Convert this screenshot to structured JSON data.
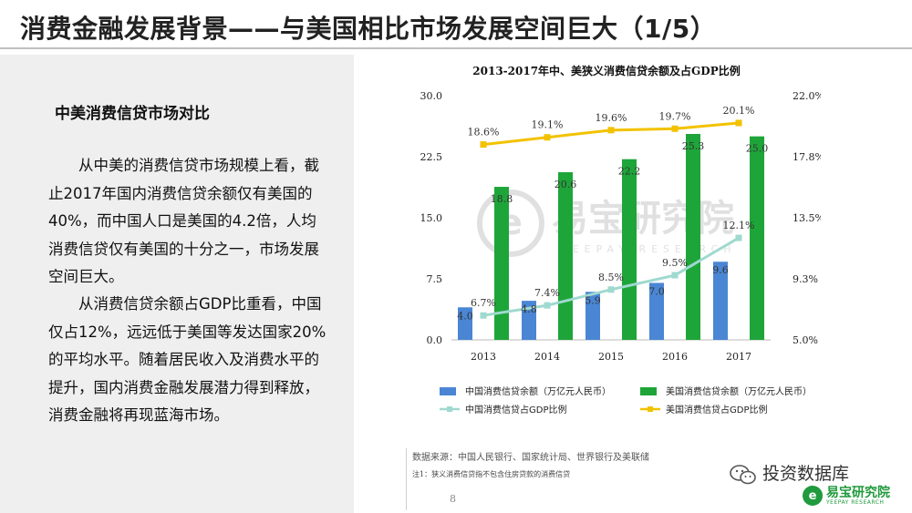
{
  "slide": {
    "title": "消费金融发展背景——与美国相比市场发展空间巨大（1/5）",
    "subheading": "中美消费信贷市场对比",
    "paragraph1": "从中美的消费信贷市场规模上看，截止2017年国内消费信贷余额仅有美国的40%，而中国人口是美国的4.2倍，人均消费信贷仅有美国的十分之一，市场发展空间巨大。",
    "paragraph2": "从消费信贷余额占GDP比重看，中国仅占12%，远远低于美国等发达国家20%的平均水平。随着居民收入及消费水平的提升，国内消费金融发展潜力得到释放，消费金融将再现蓝海市场。",
    "source": "数据来源：中国人民银行、国家统计局、世界银行及美联储",
    "note": "注1：狭义消费信贷指不包含住房贷款的消费信贷",
    "page_number": "8",
    "brand_wechat": "投资数据库",
    "brand_logo_cn": "易宝研究院",
    "brand_logo_en": "YEEPAY RESEARCH",
    "watermark_cn": "易宝研究院",
    "watermark_en": "YEEPAY RESEARCH"
  },
  "chart_data": {
    "type": "bar",
    "title": "2013-2017年中、美狭义消费信贷余额及占GDP比例",
    "categories": [
      "2013",
      "2014",
      "2015",
      "2016",
      "2017"
    ],
    "left_axis": {
      "min": 0,
      "max": 30,
      "ticks": [
        "0.0",
        "7.5",
        "15.0",
        "22.5",
        "30.0"
      ]
    },
    "right_axis": {
      "min": 5,
      "max": 22,
      "ticks": [
        "5.0%",
        "9.3%",
        "13.5%",
        "17.8%",
        "22.0%"
      ]
    },
    "bar_series": [
      {
        "name": "中国消费信贷余额（万亿元人民币）",
        "color": "#4a86d4",
        "values": [
          4.0,
          4.8,
          5.9,
          7.0,
          9.6
        ],
        "labels": [
          "4.0",
          "4.8",
          "5.9",
          "7.0",
          "9.6"
        ]
      },
      {
        "name": "美国消费信贷余额（万亿元人民币）",
        "color": "#1ea53a",
        "values": [
          18.8,
          20.6,
          22.2,
          25.3,
          25.0
        ],
        "labels": [
          "18.8",
          "20.6",
          "22.2",
          "25.3",
          "25.0"
        ]
      }
    ],
    "line_series": [
      {
        "name": "中国消费信贷占GDP比例",
        "color": "#9fd9cf",
        "values": [
          6.7,
          7.4,
          8.5,
          9.5,
          12.1
        ],
        "labels": [
          "6.7%",
          "7.4%",
          "8.5%",
          "9.5%",
          "12.1%"
        ]
      },
      {
        "name": "美国消费信贷占GDP比例",
        "color": "#f2c200",
        "values": [
          18.6,
          19.1,
          19.6,
          19.7,
          20.1
        ],
        "labels": [
          "18.6%",
          "19.1%",
          "19.6%",
          "19.7%",
          "20.1%"
        ]
      }
    ],
    "legend_position": "bottom",
    "grid": false
  }
}
